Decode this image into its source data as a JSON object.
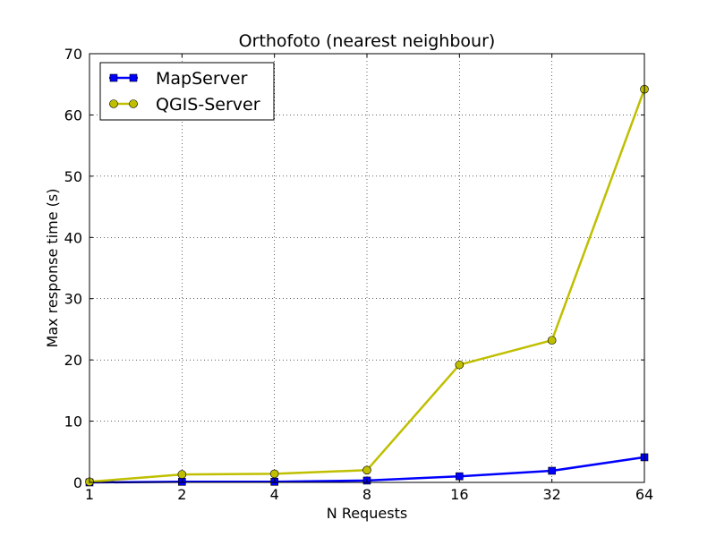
{
  "chart_data": {
    "type": "line",
    "title": "Orthofoto (nearest neighbour)",
    "xlabel": "N Requests",
    "ylabel": "Max response time (s)",
    "x": [
      1,
      2,
      4,
      8,
      16,
      32,
      64
    ],
    "x_tick_labels": [
      "1",
      "2",
      "4",
      "8",
      "16",
      "32",
      "64"
    ],
    "x_scale": "log2",
    "ylim": [
      0,
      70
    ],
    "y_ticks": [
      0,
      10,
      20,
      30,
      40,
      50,
      60,
      70
    ],
    "grid": true,
    "legend_position": "top-left",
    "series": [
      {
        "name": "MapServer",
        "marker": "square",
        "color": "#0000ff",
        "values": [
          0.0,
          0.1,
          0.1,
          0.3,
          1.0,
          1.9,
          4.1
        ]
      },
      {
        "name": "QGIS-Server",
        "marker": "circle",
        "color": "#bfbf00",
        "values": [
          0.1,
          1.3,
          1.4,
          2.0,
          19.2,
          23.2,
          64.2
        ]
      }
    ]
  }
}
